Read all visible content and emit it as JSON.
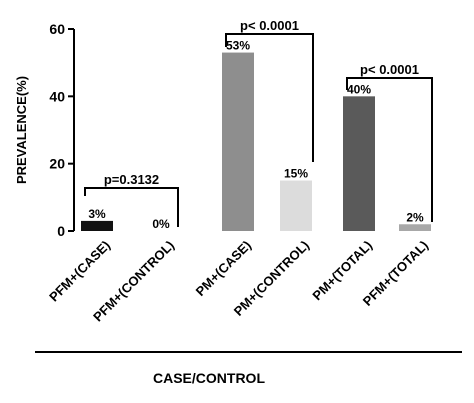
{
  "chart_data": {
    "type": "bar",
    "categories": [
      "PFM+(CASE)",
      "PFM+(CONTROL)",
      "PM+(CASE)",
      "PM+(CONTROL)",
      "PM+(TOTAL)",
      "PFM+(TOTAL)"
    ],
    "values": [
      3,
      0,
      53,
      15,
      40,
      2
    ],
    "value_labels": [
      "3%",
      "0%",
      "53%",
      "15%",
      "40%",
      "2%"
    ],
    "bar_colors": [
      "#111111",
      "#ffffff",
      "#8e8e8e",
      "#dcdcdc",
      "#5a5a5a",
      "#a8a8a8"
    ],
    "ylabel": "PREVALENCE(%)",
    "xlabel": "CASE/CONTROL",
    "ylim": [
      0,
      60
    ],
    "yticks": [
      0,
      20,
      40,
      60
    ],
    "grid": false,
    "comparisons": [
      {
        "from": 0,
        "to": 1,
        "label": "p=0.3132"
      },
      {
        "from": 2,
        "to": 3,
        "label": "p< 0.0001"
      },
      {
        "from": 4,
        "to": 5,
        "label": "p< 0.0001"
      }
    ]
  }
}
